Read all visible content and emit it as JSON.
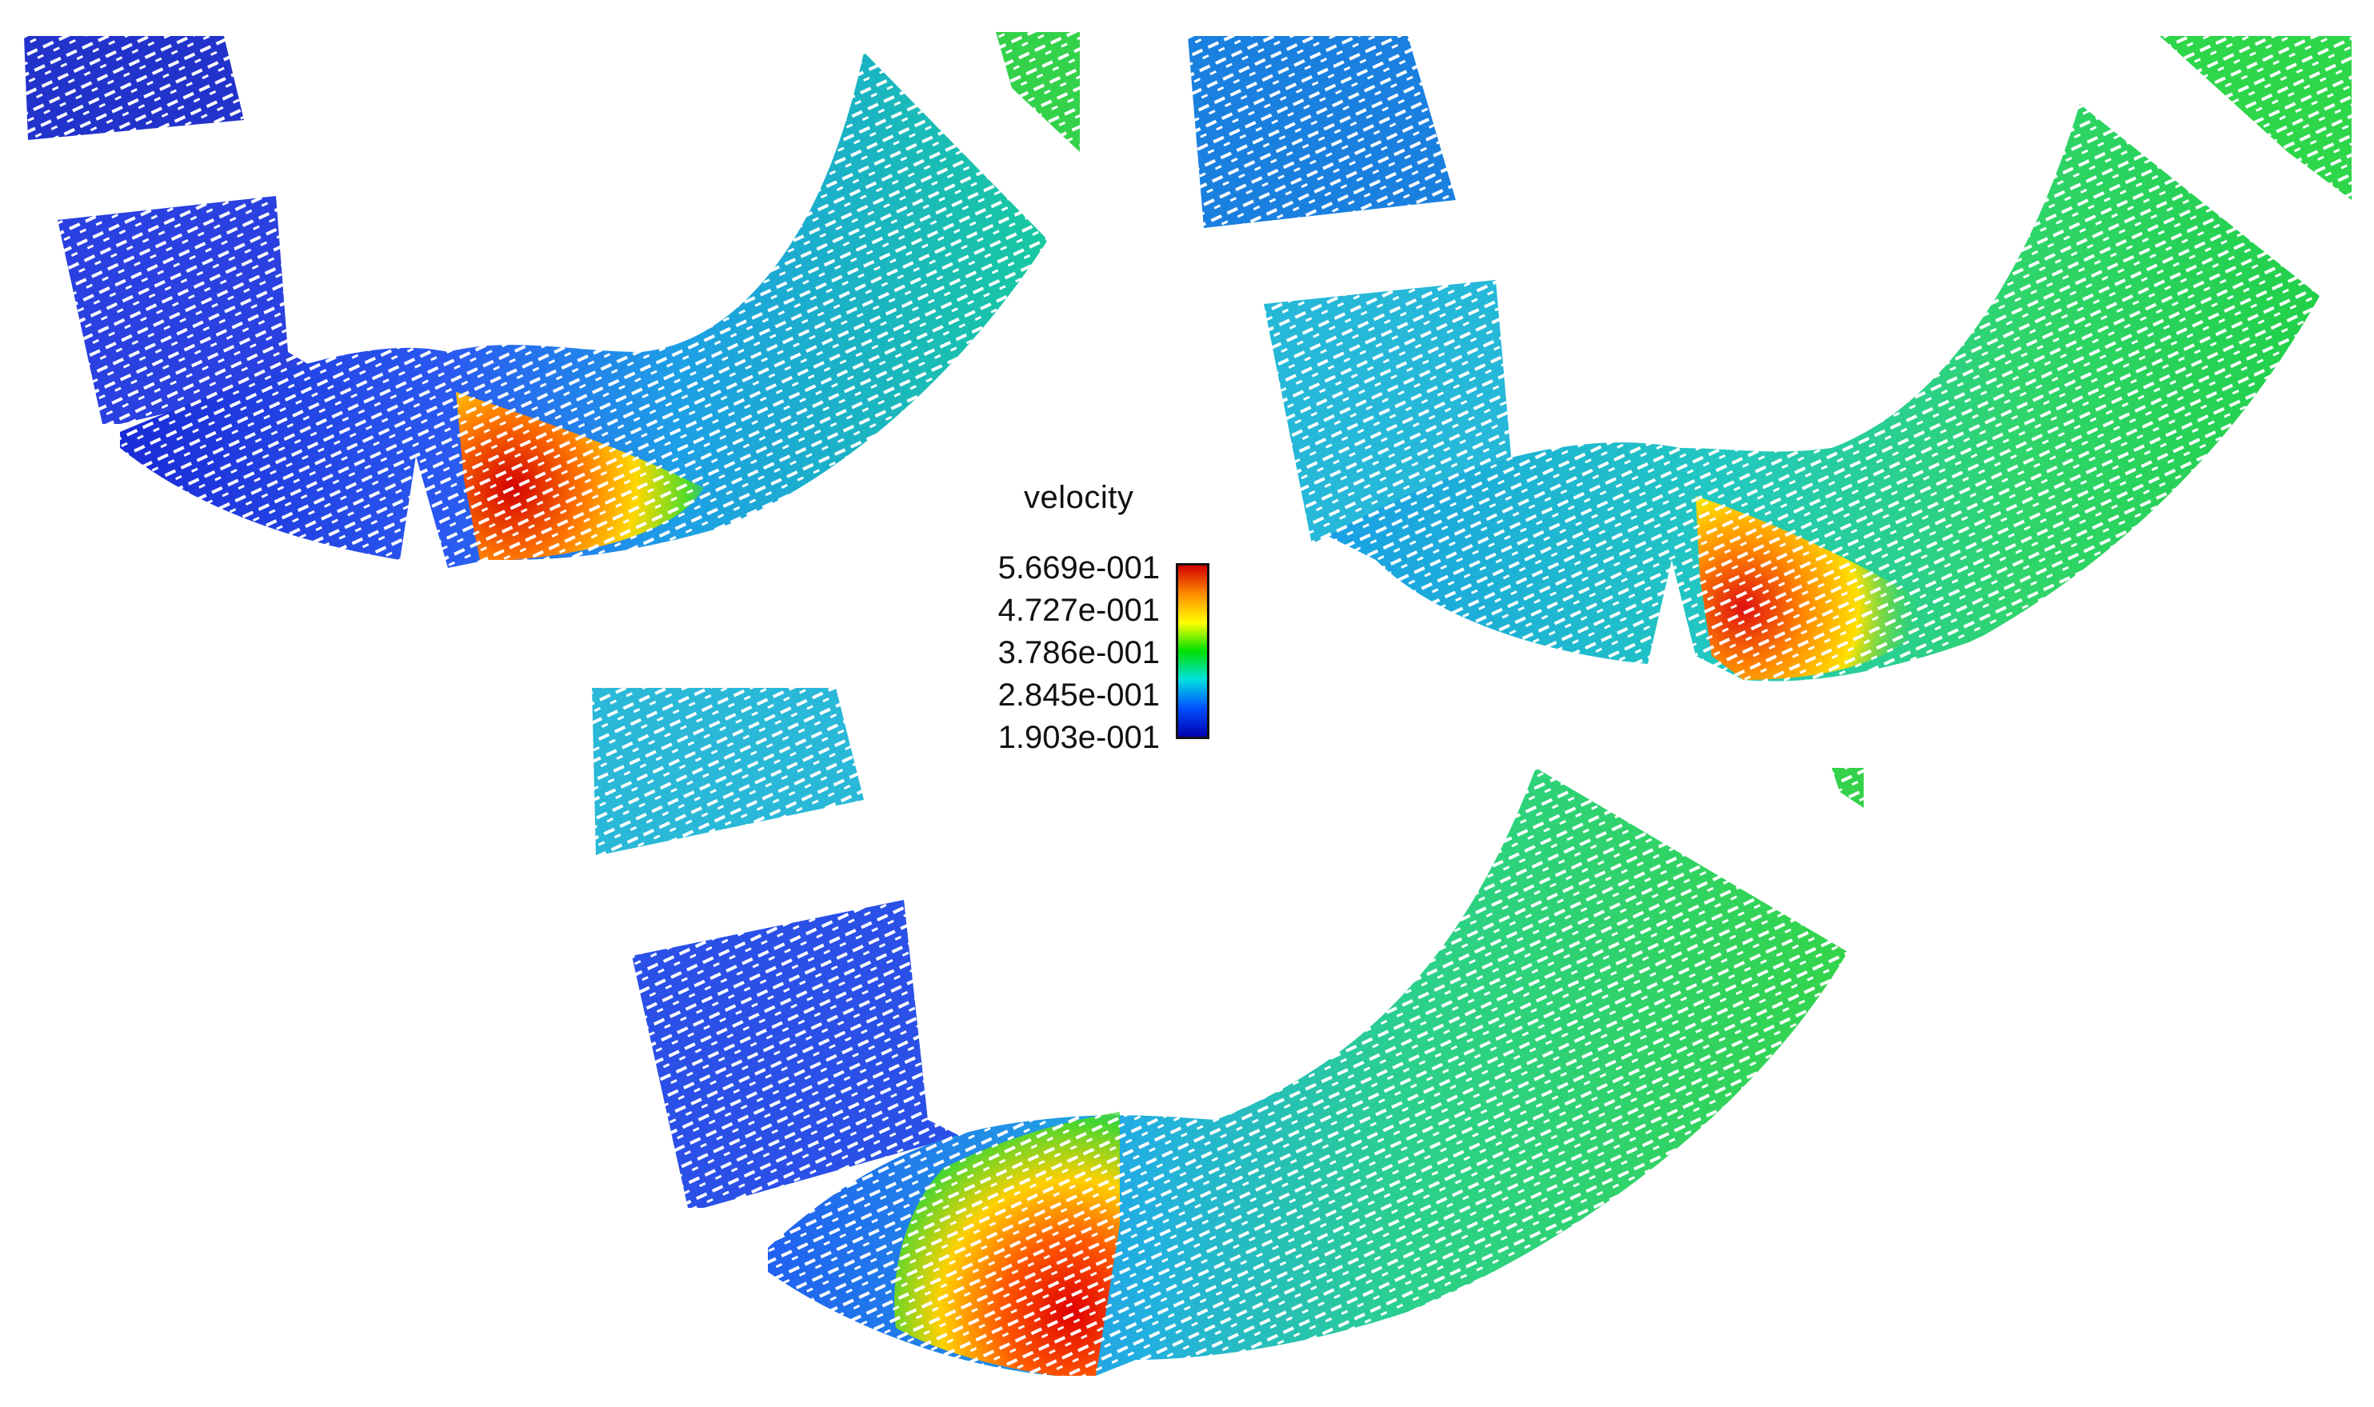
{
  "legend": {
    "title": "velocity",
    "labels": [
      "5.669e-001",
      "4.727e-001",
      "3.786e-001",
      "2.845e-001",
      "1.903e-001"
    ],
    "colormap": [
      "#d40000",
      "#ff8c00",
      "#ffff00",
      "#00e000",
      "#00e0e0",
      "#0050ff",
      "#0000b0"
    ]
  },
  "panels": [
    {
      "name": "panel-top-left",
      "overall_level": 0.35,
      "hotspot_level": 1.0
    },
    {
      "name": "panel-top-right",
      "overall_level": 0.5,
      "hotspot_level": 1.0
    },
    {
      "name": "panel-bottom",
      "overall_level": 0.45,
      "hotspot_level": 1.0
    }
  ]
}
